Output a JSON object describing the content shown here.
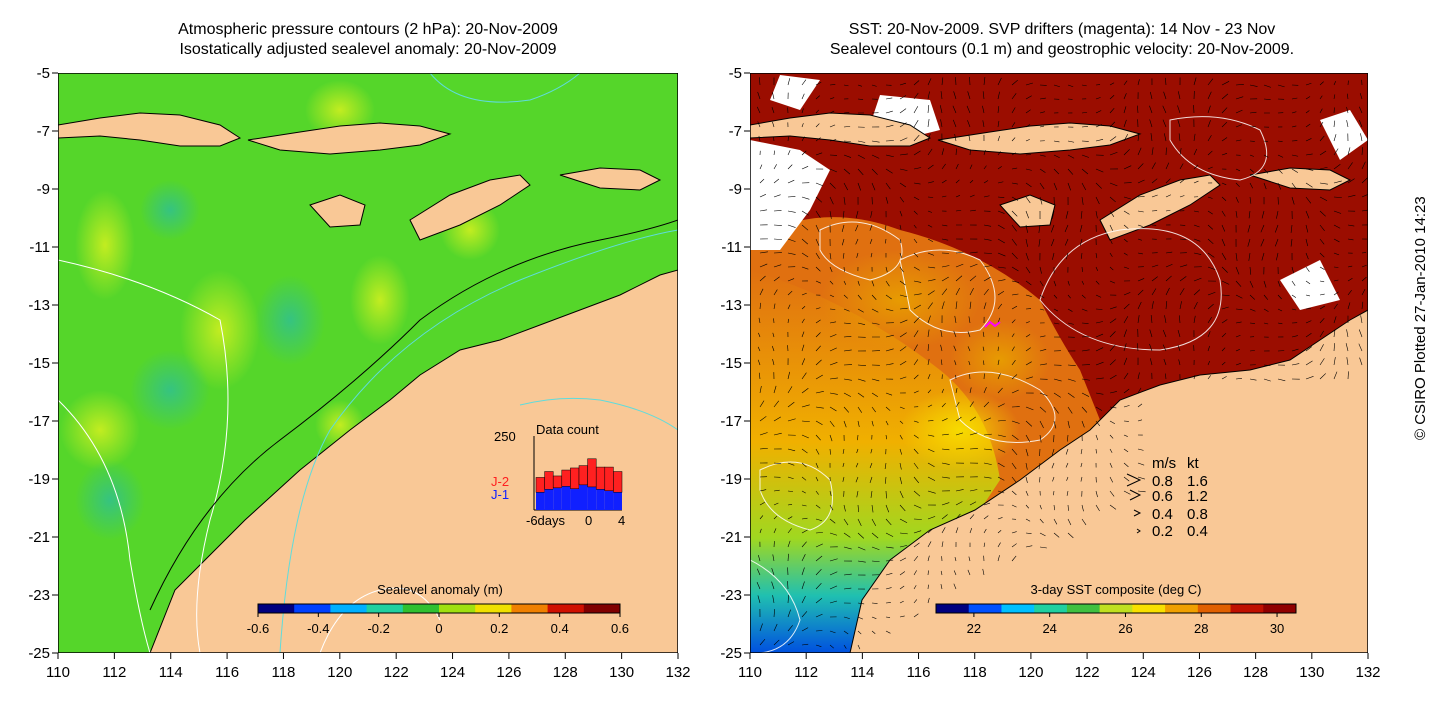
{
  "left_panel": {
    "title_line1": "Atmospheric pressure contours (2 hPa): 20-Nov-2009",
    "title_line2": "Isostatically adjusted sealevel anomaly: 20-Nov-2009",
    "colorbar": {
      "label": "Sealevel anomaly (m)",
      "ticks": [
        "-0.6",
        "-0.4",
        "-0.2",
        "0",
        "0.2",
        "0.4",
        "0.6"
      ],
      "colors": [
        "#00007f",
        "#0040ff",
        "#00b0ff",
        "#20d0a0",
        "#30c030",
        "#a0e010",
        "#f0e000",
        "#f08000",
        "#d01000",
        "#800000"
      ]
    },
    "inset": {
      "title": "Data count",
      "ymax_label": "250",
      "xticks": [
        "-6days",
        "0",
        "4"
      ],
      "legend_j2": "J-2",
      "legend_j1": "J-1",
      "color_j2": "#ff2020",
      "color_j1": "#1020ff"
    }
  },
  "right_panel": {
    "title_line1": "SST: 20-Nov-2009. SVP drifters (magenta): 14 Nov - 23 Nov",
    "title_line2": "Sealevel contours (0.1 m) and geostrophic velocity: 20-Nov-2009.",
    "colorbar": {
      "label": "3-day SST composite (deg C)",
      "ticks": [
        "22",
        "24",
        "26",
        "28",
        "30"
      ],
      "colors": [
        "#00007f",
        "#0050ff",
        "#00c0ff",
        "#20d0a0",
        "#40c040",
        "#c0e020",
        "#f8e000",
        "#f0a000",
        "#e06000",
        "#c01000",
        "#900000"
      ]
    },
    "velocity_legend": {
      "header_ms": "m/s",
      "header_kt": "kt",
      "rows": [
        {
          "ms": "0.8",
          "kt": "1.6"
        },
        {
          "ms": "0.6",
          "kt": "1.2"
        },
        {
          "ms": "0.4",
          "kt": "0.8"
        },
        {
          "ms": "0.2",
          "kt": "0.4"
        }
      ]
    }
  },
  "credit": "© CSIRO Plotted 27-Jan-2010 14:23",
  "colors": {
    "land": "#f9c896",
    "ocean_green": "#55d62a",
    "sst_dark": "#9b0d00",
    "sst_orange": "#e07010",
    "cloud": "#ffffff"
  },
  "chart_data": [
    {
      "type": "heatmap",
      "title": "Atmospheric pressure contours (2 hPa): 20-Nov-2009 / Isostatically adjusted sealevel anomaly: 20-Nov-2009",
      "x_ticks": [
        110,
        112,
        114,
        116,
        118,
        120,
        122,
        124,
        126,
        128,
        130,
        132
      ],
      "y_ticks": [
        -5,
        -7,
        -9,
        -11,
        -13,
        -15,
        -17,
        -19,
        -21,
        -23,
        -25
      ],
      "xlim": [
        110,
        132
      ],
      "ylim": [
        -25,
        -5
      ],
      "colorbar_label": "Sealevel anomaly (m)",
      "colorbar_range": [
        -0.6,
        0.6
      ],
      "inset": {
        "type": "bar",
        "title": "Data count",
        "x_range": [
          -6,
          4
        ],
        "ymax": 250,
        "series": [
          {
            "name": "J-1",
            "values": [
              60,
              70,
              75,
              80,
              72,
              85,
              78,
              70,
              65,
              60
            ]
          },
          {
            "name": "J-2",
            "values": [
              50,
              60,
              40,
              55,
              70,
              65,
              95,
              75,
              80,
              70
            ]
          }
        ]
      }
    },
    {
      "type": "heatmap",
      "title": "SST: 20-Nov-2009. SVP drifters (magenta): 14 Nov - 23 Nov / Sealevel contours (0.1 m) and geostrophic velocity: 20-Nov-2009.",
      "x_ticks": [
        110,
        112,
        114,
        116,
        118,
        120,
        122,
        124,
        126,
        128,
        130,
        132
      ],
      "y_ticks": [
        -5,
        -7,
        -9,
        -11,
        -13,
        -15,
        -17,
        -19,
        -21,
        -23,
        -25
      ],
      "xlim": [
        110,
        132
      ],
      "ylim": [
        -25,
        -5
      ],
      "colorbar_label": "3-day SST composite (deg C)",
      "colorbar_range": [
        21,
        30.5
      ],
      "velocity_scale_ms": [
        0.8,
        0.6,
        0.4,
        0.2
      ],
      "velocity_scale_kt": [
        1.6,
        1.2,
        0.8,
        0.4
      ]
    }
  ]
}
